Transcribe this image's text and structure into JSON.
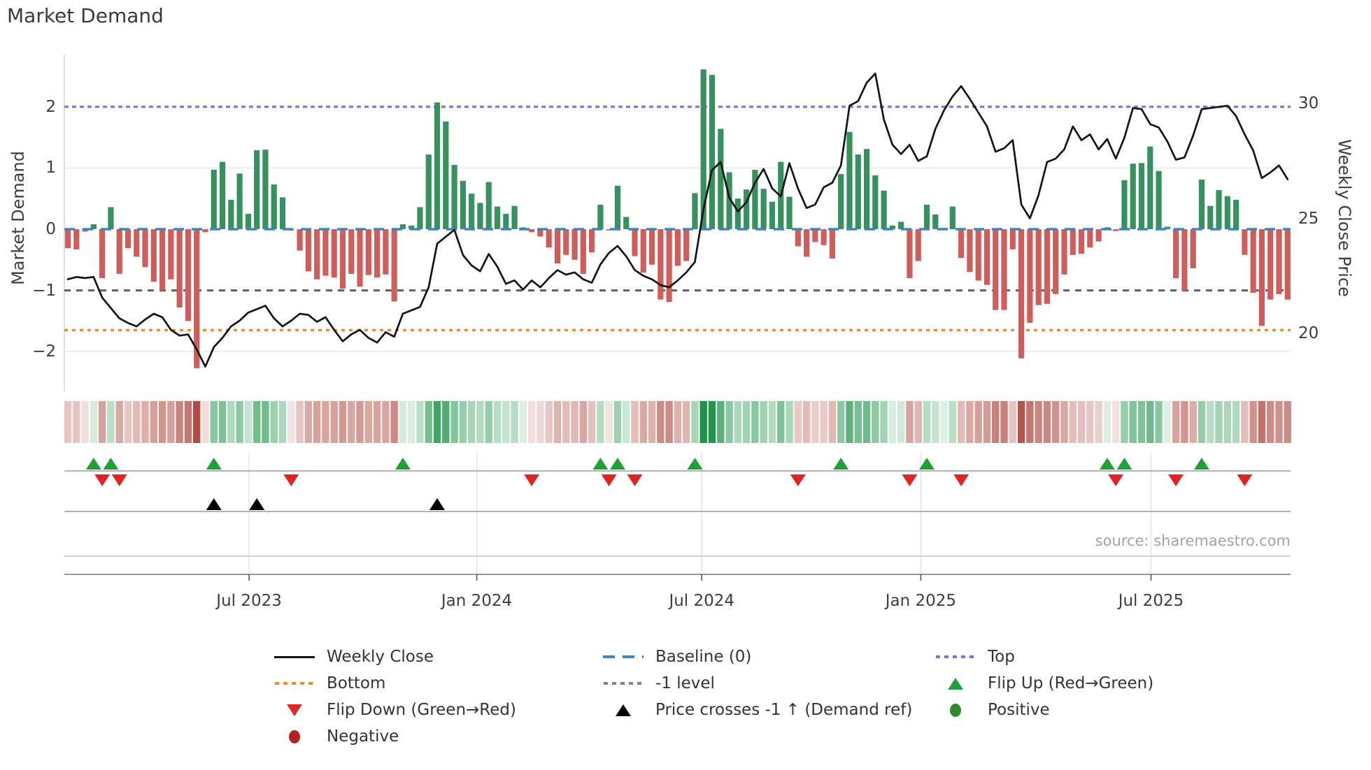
{
  "title": "Market Demand",
  "source": "source: sharemaestro.com",
  "axes": {
    "left_label": "Market Demand",
    "right_label": "Weekly Close Price",
    "left_tick_labels": [
      "2",
      "1",
      "0",
      "−1",
      "−2"
    ],
    "left_tick_values": [
      2,
      1,
      0,
      -1,
      -2
    ],
    "right_tick_labels": [
      "30",
      "25",
      "20"
    ],
    "right_tick_values": [
      30,
      25,
      20
    ],
    "x_tick_labels": [
      "Jul 2023",
      "Jan 2024",
      "Jul 2024",
      "Jan 2025",
      "Jul 2025"
    ]
  },
  "colors": {
    "bar_positive": "#37915f",
    "bar_negative": "#cd5e5c",
    "price_line": "#141414",
    "baseline": "#3f86b8",
    "top_line": "#7d6ee4",
    "bottom_line": "#f08c1e",
    "minus1_line": "#5c6066",
    "flip_up": "#21a038",
    "flip_down": "#e02424",
    "price_cross": "#000000",
    "positive_dot": "#2e8b2e",
    "negative_dot": "#b22222",
    "heat_green_base": "#1e944a",
    "heat_red_base": "#a93a30",
    "grid": "#ececf0",
    "spine": "#8a8a8a"
  },
  "chart_data": {
    "type": "bar+line",
    "weeks": 143,
    "title": "Market Demand",
    "ylabel_left": "Market Demand",
    "ylabel_right": "Weekly Close Price",
    "ylim_left": [
      -2.6,
      2.8
    ],
    "ylim_right": [
      17.6,
      32.1
    ],
    "x_tick_labels": [
      "Jul 2023",
      "Jan 2024",
      "Jul 2024",
      "Jan 2025",
      "Jul 2025"
    ],
    "x_tick_weeks": [
      21.1,
      47.6,
      73.8,
      99.3,
      126.1
    ],
    "baseline_level": 0,
    "top_level": 2,
    "minus1_level": -1,
    "bottom_level": -1.65,
    "series": [
      {
        "name": "Market Demand",
        "type": "bar",
        "values": [
          -0.31,
          -0.33,
          -0.04,
          0.08,
          -0.8,
          0.36,
          -0.73,
          -0.31,
          -0.45,
          -0.62,
          -0.86,
          -1.0,
          -0.82,
          -1.28,
          -1.5,
          -2.27,
          -0.05,
          0.97,
          1.1,
          0.48,
          0.91,
          0.25,
          1.29,
          1.3,
          0.73,
          0.52,
          -0.02,
          -0.35,
          -0.69,
          -0.82,
          -0.76,
          -0.79,
          -0.97,
          -0.73,
          -0.94,
          -0.75,
          -0.79,
          -0.74,
          -1.18,
          0.08,
          0.06,
          0.36,
          1.22,
          2.07,
          1.76,
          1.05,
          0.79,
          0.58,
          0.43,
          0.77,
          0.37,
          0.25,
          0.38,
          0.03,
          -0.05,
          -0.12,
          -0.3,
          -0.56,
          -0.42,
          -0.5,
          -0.73,
          -0.38,
          0.4,
          -0.02,
          0.71,
          0.2,
          -0.44,
          -0.71,
          -0.58,
          -1.15,
          -1.19,
          -0.6,
          -0.52,
          0.59,
          2.61,
          2.52,
          1.64,
          0.93,
          0.5,
          0.65,
          0.97,
          0.66,
          0.45,
          1.1,
          0.53,
          -0.28,
          -0.45,
          -0.21,
          -0.26,
          -0.48,
          0.9,
          1.59,
          1.22,
          1.31,
          0.88,
          0.63,
          0.06,
          0.12,
          -0.8,
          -0.52,
          0.4,
          0.24,
          0.02,
          0.37,
          -0.47,
          -0.7,
          -0.84,
          -0.91,
          -1.32,
          -1.32,
          -0.33,
          -2.11,
          -1.53,
          -1.24,
          -1.22,
          -1.06,
          -0.74,
          -0.42,
          -0.4,
          -0.3,
          -0.2,
          0.03,
          -0.03,
          0.8,
          1.07,
          1.08,
          1.35,
          0.95,
          0.04,
          -0.8,
          -1.0,
          -0.64,
          0.81,
          0.38,
          0.64,
          0.54,
          0.48,
          -0.42,
          -1.04,
          -1.58,
          -1.15,
          -1.06,
          -1.15
        ]
      },
      {
        "name": "Weekly Close",
        "type": "line",
        "values": [
          22.35,
          22.45,
          22.4,
          22.45,
          21.55,
          21.1,
          20.65,
          20.45,
          20.3,
          20.6,
          20.85,
          20.7,
          20.15,
          19.9,
          19.95,
          19.3,
          18.55,
          19.4,
          19.8,
          20.3,
          20.55,
          20.9,
          21.05,
          21.2,
          20.65,
          20.3,
          20.55,
          20.85,
          20.8,
          20.5,
          20.7,
          20.15,
          19.65,
          19.95,
          20.15,
          19.8,
          19.6,
          20.05,
          19.85,
          20.85,
          21.0,
          21.15,
          22.0,
          23.9,
          24.2,
          24.5,
          23.4,
          22.95,
          22.7,
          23.45,
          22.9,
          22.15,
          22.3,
          21.9,
          22.3,
          22.0,
          22.4,
          22.75,
          22.55,
          22.65,
          22.35,
          22.2,
          23.0,
          23.5,
          23.8,
          23.35,
          22.75,
          22.5,
          22.35,
          22.1,
          22.0,
          22.3,
          22.65,
          23.1,
          25.4,
          27.1,
          27.45,
          25.9,
          25.3,
          25.7,
          26.55,
          27.15,
          26.3,
          25.95,
          27.4,
          26.3,
          25.45,
          25.6,
          26.35,
          26.55,
          27.3,
          29.9,
          30.1,
          30.9,
          31.3,
          29.3,
          28.2,
          27.8,
          28.2,
          27.5,
          27.7,
          28.9,
          29.7,
          30.3,
          30.75,
          30.2,
          29.6,
          29.0,
          27.9,
          28.05,
          28.4,
          25.6,
          25.0,
          26.0,
          27.45,
          27.6,
          28.0,
          29.0,
          28.4,
          28.65,
          28.0,
          28.45,
          27.6,
          28.5,
          29.8,
          29.75,
          29.1,
          28.95,
          28.35,
          27.55,
          27.65,
          28.6,
          29.75,
          29.8,
          29.85,
          29.9,
          29.45,
          28.65,
          27.95,
          26.75,
          27.0,
          27.3,
          26.7
        ]
      }
    ],
    "flip_up_weeks": [
      3,
      5,
      17,
      39,
      62,
      64,
      73,
      90,
      100,
      121,
      123,
      132
    ],
    "flip_down_weeks": [
      4,
      6,
      26,
      54,
      63,
      66,
      85,
      98,
      104,
      122,
      129,
      137
    ],
    "price_cross_weeks": [
      17,
      22,
      43
    ],
    "heatmap": "signed intensity of Market Demand bar values (red negative, green positive)",
    "legend_position": "below chart, three columns"
  },
  "legend": {
    "items": [
      {
        "label": "Weekly Close",
        "type": "line",
        "color": "#141414",
        "col": 0
      },
      {
        "label": "Bottom",
        "type": "dot",
        "color": "#f08c1e",
        "col": 0
      },
      {
        "label": "Flip Down (Green→Red)",
        "type": "tri-down",
        "color": "#e02424",
        "col": 0
      },
      {
        "label": "Negative",
        "type": "circle",
        "color": "#b22222",
        "col": 0
      },
      {
        "label": "Baseline (0)",
        "type": "dash",
        "color": "#3f86b8",
        "col": 1
      },
      {
        "label": "-1 level",
        "type": "dot",
        "color": "#808080",
        "col": 1
      },
      {
        "label": "Price crosses -1 ↑ (Demand ref)",
        "type": "tri-up",
        "color": "#000000",
        "col": 1
      },
      {
        "label": "Top",
        "type": "dot",
        "color": "#7d6ee4",
        "col": 2
      },
      {
        "label": "Flip Up (Red→Green)",
        "type": "tri-up",
        "color": "#21a038",
        "col": 2
      },
      {
        "label": "Positive",
        "type": "circle",
        "color": "#2e8b2e",
        "col": 2
      }
    ]
  }
}
